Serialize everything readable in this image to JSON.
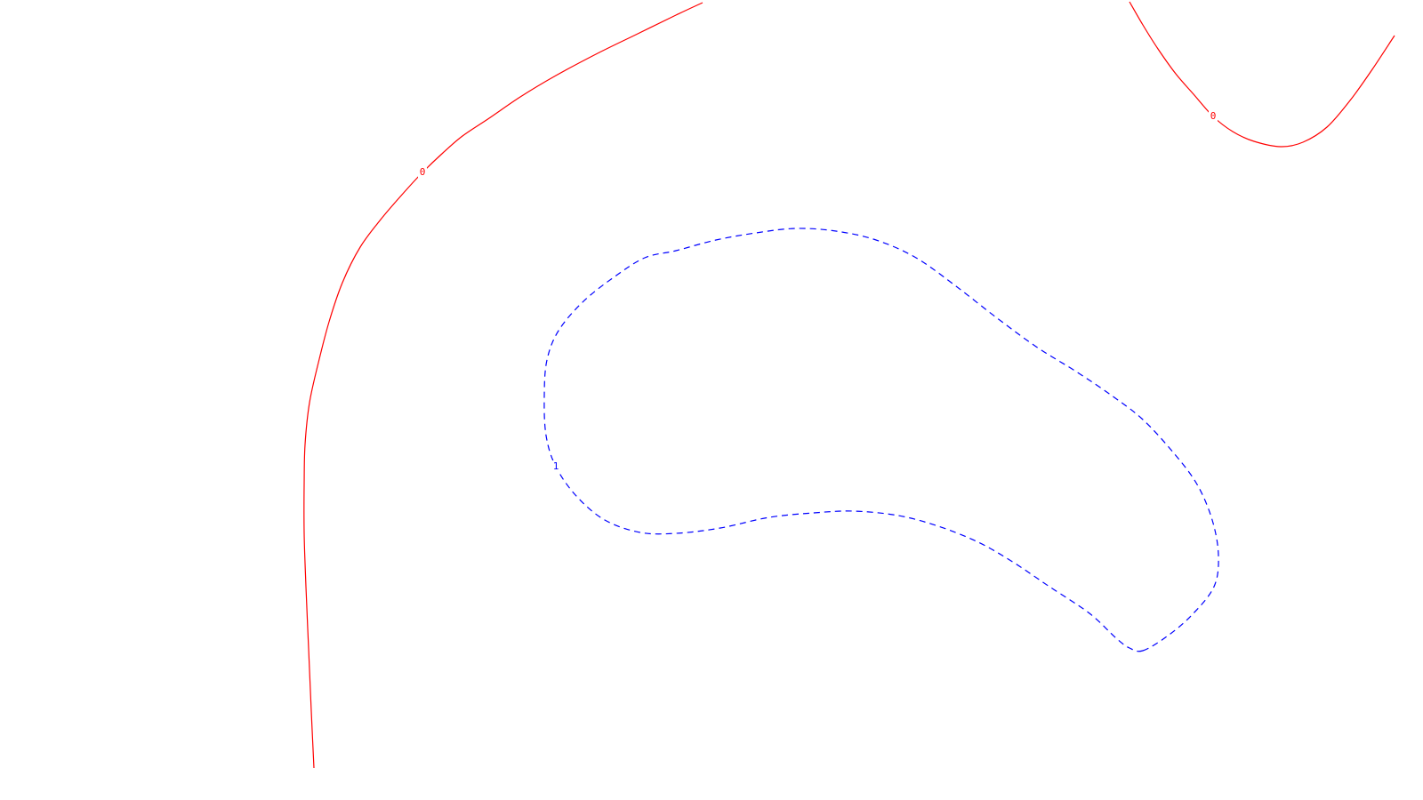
{
  "chart_data": {
    "type": "contour",
    "title": "",
    "xlabel": "",
    "ylabel": "",
    "grid": false,
    "legend": "none",
    "series": [
      {
        "level": "0",
        "color": "#ff0000",
        "style": "solid",
        "label_index": 9,
        "points": [
          [
            790,
            3
          ],
          [
            760,
            17
          ],
          [
            715,
            39
          ],
          [
            670,
            61
          ],
          [
            625,
            85
          ],
          [
            585,
            109
          ],
          [
            550,
            133
          ],
          [
            520,
            153
          ],
          [
            498,
            172
          ],
          [
            475,
            194
          ],
          [
            452,
            219
          ],
          [
            428,
            247
          ],
          [
            405,
            278
          ],
          [
            385,
            318
          ],
          [
            370,
            362
          ],
          [
            358,
            408
          ],
          [
            348,
            453
          ],
          [
            343,
            500
          ],
          [
            342,
            545
          ],
          [
            342,
            600
          ],
          [
            344,
            660
          ],
          [
            347,
            730
          ],
          [
            350,
            800
          ],
          [
            353,
            864
          ]
        ]
      },
      {
        "level": "0",
        "color": "#ff0000",
        "style": "solid",
        "label_index": 5,
        "points": [
          [
            1270,
            2
          ],
          [
            1285,
            28
          ],
          [
            1302,
            55
          ],
          [
            1322,
            83
          ],
          [
            1342,
            106
          ],
          [
            1364,
            131
          ],
          [
            1386,
            148
          ],
          [
            1410,
            159
          ],
          [
            1440,
            165
          ],
          [
            1465,
            160
          ],
          [
            1492,
            143
          ],
          [
            1518,
            113
          ],
          [
            1543,
            78
          ],
          [
            1568,
            40
          ]
        ]
      },
      {
        "level": "1",
        "color": "#0000ff",
        "style": "dashed",
        "label_index": 28,
        "closed": true,
        "points": [
          [
            1285,
            732
          ],
          [
            1312,
            716
          ],
          [
            1340,
            692
          ],
          [
            1365,
            660
          ],
          [
            1370,
            625
          ],
          [
            1363,
            585
          ],
          [
            1346,
            545
          ],
          [
            1320,
            510
          ],
          [
            1285,
            472
          ],
          [
            1250,
            445
          ],
          [
            1210,
            418
          ],
          [
            1165,
            390
          ],
          [
            1120,
            357
          ],
          [
            1075,
            322
          ],
          [
            1030,
            290
          ],
          [
            985,
            270
          ],
          [
            940,
            260
          ],
          [
            895,
            257
          ],
          [
            850,
            262
          ],
          [
            805,
            270
          ],
          [
            760,
            282
          ],
          [
            725,
            290
          ],
          [
            690,
            312
          ],
          [
            655,
            340
          ],
          [
            628,
            372
          ],
          [
            615,
            405
          ],
          [
            612,
            445
          ],
          [
            614,
            490
          ],
          [
            625,
            525
          ],
          [
            648,
            558
          ],
          [
            680,
            585
          ],
          [
            720,
            599
          ],
          [
            760,
            600
          ],
          [
            810,
            594
          ],
          [
            865,
            582
          ],
          [
            915,
            577
          ],
          [
            960,
            575
          ],
          [
            1010,
            580
          ],
          [
            1055,
            592
          ],
          [
            1100,
            610
          ],
          [
            1140,
            633
          ],
          [
            1180,
            660
          ],
          [
            1225,
            690
          ],
          [
            1255,
            718
          ],
          [
            1270,
            729
          ]
        ]
      }
    ]
  }
}
